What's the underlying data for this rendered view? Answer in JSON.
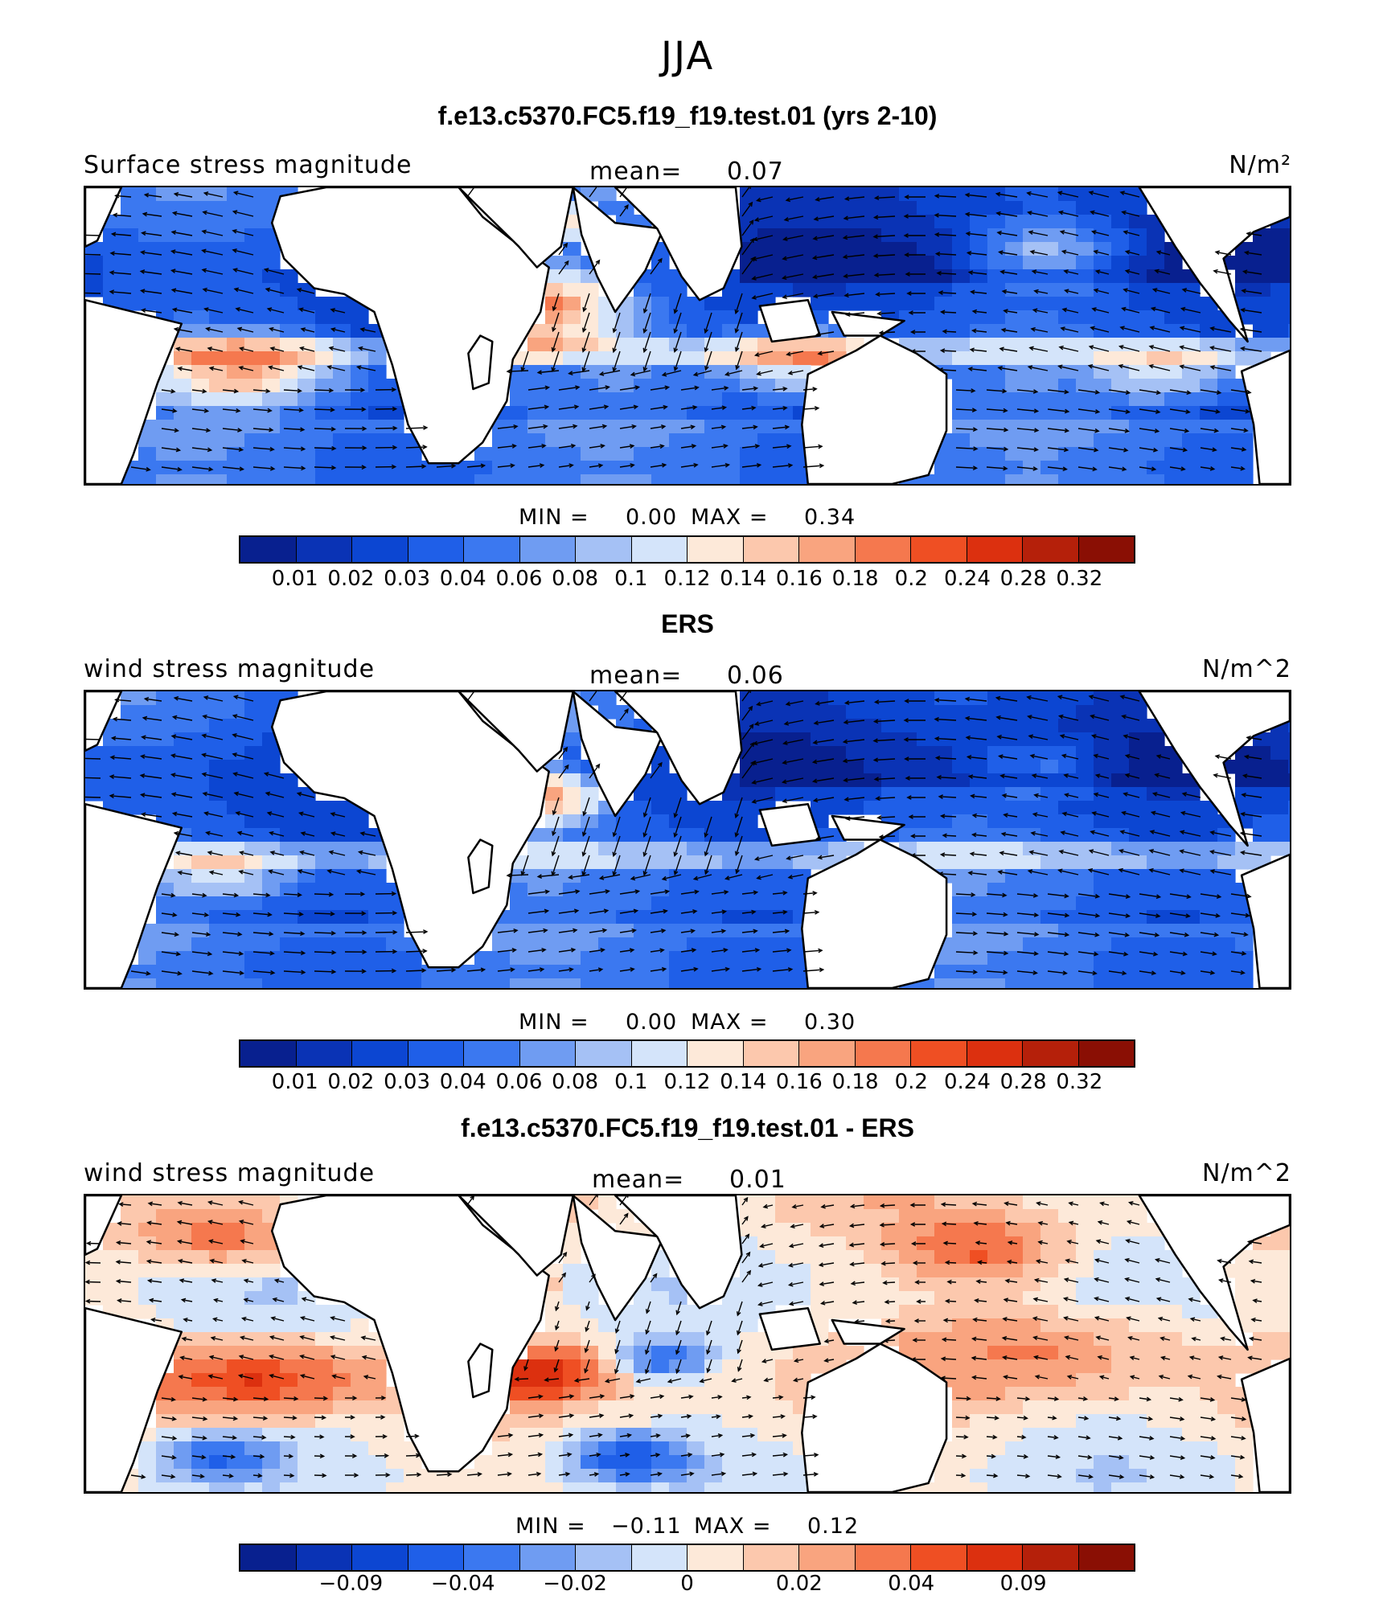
{
  "header": {
    "season": "JJA"
  },
  "colors": {
    "palette": [
      "#08208f",
      "#0a33b5",
      "#0c46d2",
      "#1f5fe8",
      "#3b78f0",
      "#6f9cf2",
      "#a5c1f5",
      "#d4e4fa",
      "#fde9d9",
      "#fcc8ad",
      "#f9a47f",
      "#f5784e",
      "#ef4f23",
      "#dc300f",
      "#b5200a",
      "#8a0f04"
    ],
    "land": "#ffffff",
    "coast": "#000000"
  },
  "chart_data": [
    {
      "type": "heatmap",
      "panel_title": "f.e13.c5370.FC5.f19_f19.test.01 (yrs 2-10)",
      "variable": "Surface stress magnitude",
      "units": "N/m²",
      "mean_label": "mean=",
      "mean": "0.07",
      "min_label": "MIN =",
      "min": "0.00",
      "max_label": "MAX =",
      "max": "0.34",
      "colorbar_levels": [
        "0.01",
        "0.02",
        "0.03",
        "0.04",
        "0.06",
        "0.08",
        "0.1",
        "0.12",
        "0.14",
        "0.16",
        "0.18",
        "0.2",
        "0.24",
        "0.28",
        "0.32"
      ],
      "overlay": "wind stress vectors"
    },
    {
      "type": "heatmap",
      "panel_title": "ERS",
      "variable": "wind stress magnitude",
      "units": "N/m^2",
      "mean_label": "mean=",
      "mean": "0.06",
      "min_label": "MIN =",
      "min": "0.00",
      "max_label": "MAX =",
      "max": "0.30",
      "colorbar_levels": [
        "0.01",
        "0.02",
        "0.03",
        "0.04",
        "0.06",
        "0.08",
        "0.1",
        "0.12",
        "0.14",
        "0.16",
        "0.18",
        "0.2",
        "0.24",
        "0.28",
        "0.32"
      ],
      "overlay": "wind stress vectors"
    },
    {
      "type": "heatmap",
      "panel_title": "f.e13.c5370.FC5.f19_f19.test.01 - ERS",
      "variable": "wind stress magnitude",
      "units": "N/m^2",
      "mean_label": "mean=",
      "mean": "0.01",
      "min_label": "MIN =",
      "min": "−0.11",
      "max_label": "MAX =",
      "max": "0.12",
      "colorbar_levels": [
        "−0.09",
        "−0.04",
        "−0.02",
        "0",
        "0.02",
        "0.04",
        "0.09"
      ],
      "overlay": "wind stress difference vectors"
    }
  ]
}
